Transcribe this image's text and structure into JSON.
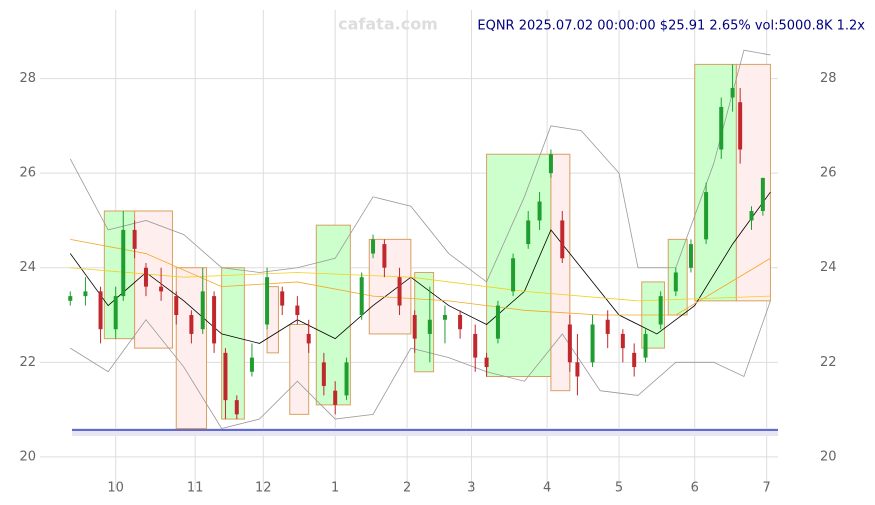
{
  "chart_data": {
    "type": "candlestick",
    "title": "EQNR 2025.07.02 00:00:00 $25.91 2.65% vol:5000.8K 1.2x",
    "watermark": "cafata.com",
    "x": [
      0,
      4,
      8,
      12,
      14,
      17,
      20,
      24,
      28,
      32,
      35,
      38,
      41,
      44,
      48,
      52,
      56,
      60,
      63,
      67,
      70,
      73,
      77,
      80,
      83,
      87,
      91,
      95,
      99,
      103,
      107,
      110,
      113,
      117,
      121,
      124,
      127,
      130,
      132,
      134,
      138,
      142,
      146,
      149,
      152,
      156,
      160,
      164,
      168,
      172,
      175,
      177,
      180,
      183
    ],
    "open": [
      23.3,
      23.4,
      23.5,
      22.7,
      23.4,
      24.8,
      24.0,
      23.6,
      23.4,
      23.0,
      22.7,
      23.4,
      22.2,
      21.2,
      21.8,
      22.8,
      23.5,
      23.2,
      22.6,
      22.0,
      21.4,
      21.3,
      23.0,
      24.3,
      24.5,
      23.8,
      23.0,
      22.6,
      22.9,
      23.0,
      22.6,
      22.1,
      22.5,
      23.5,
      24.5,
      25.0,
      26.0,
      25.0,
      22.8,
      22.0,
      22.0,
      22.9,
      22.6,
      22.2,
      22.1,
      22.8,
      23.5,
      24.0,
      24.6,
      26.5,
      27.6,
      27.5,
      25.0,
      25.2
    ],
    "high": [
      23.5,
      23.8,
      23.6,
      23.6,
      25.2,
      25.0,
      24.1,
      24.0,
      23.5,
      23.1,
      24.0,
      23.5,
      22.3,
      21.3,
      22.4,
      24.0,
      23.6,
      23.4,
      22.9,
      22.2,
      21.6,
      22.1,
      23.9,
      24.7,
      24.6,
      24.0,
      23.1,
      23.6,
      23.2,
      23.1,
      22.8,
      22.2,
      23.3,
      24.3,
      25.2,
      25.6,
      26.5,
      25.2,
      23.0,
      22.6,
      23.0,
      23.1,
      22.7,
      22.4,
      22.7,
      23.5,
      24.0,
      24.6,
      25.8,
      27.6,
      28.3,
      27.8,
      25.3,
      25.9
    ],
    "low": [
      23.2,
      23.2,
      22.4,
      22.5,
      23.3,
      24.2,
      23.4,
      23.3,
      22.8,
      22.4,
      22.6,
      22.2,
      20.8,
      20.8,
      21.7,
      22.7,
      23.0,
      22.8,
      22.2,
      21.3,
      20.9,
      21.2,
      22.9,
      24.2,
      23.8,
      23.0,
      22.2,
      22.0,
      22.4,
      22.5,
      21.8,
      21.7,
      22.4,
      23.4,
      24.4,
      24.8,
      25.9,
      24.1,
      21.8,
      21.3,
      21.9,
      22.3,
      22.0,
      21.7,
      22.0,
      22.7,
      23.4,
      23.9,
      24.5,
      26.3,
      27.3,
      26.2,
      24.8,
      25.1
    ],
    "close": [
      23.4,
      23.5,
      22.7,
      23.4,
      24.8,
      24.4,
      23.6,
      23.5,
      23.0,
      22.6,
      23.5,
      22.4,
      21.2,
      20.9,
      22.1,
      23.8,
      23.2,
      23.0,
      22.4,
      21.5,
      21.1,
      22.0,
      23.8,
      24.6,
      24.0,
      23.2,
      22.5,
      22.9,
      23.0,
      22.7,
      22.1,
      21.9,
      23.2,
      24.2,
      25.0,
      25.4,
      26.4,
      24.2,
      22.0,
      21.7,
      22.8,
      22.6,
      22.3,
      21.9,
      22.6,
      23.4,
      23.9,
      24.5,
      25.6,
      27.4,
      27.8,
      26.5,
      25.2,
      25.9
    ],
    "up_color": "#1f9e2f",
    "down_color": "#c0282d",
    "xlim": [
      -8,
      187
    ],
    "xticks": [
      {
        "value": 12,
        "label": "10"
      },
      {
        "value": 33,
        "label": "11"
      },
      {
        "value": 51,
        "label": "12"
      },
      {
        "value": 70,
        "label": "1"
      },
      {
        "value": 89,
        "label": "2"
      },
      {
        "value": 106,
        "label": "3"
      },
      {
        "value": 126,
        "label": "4"
      },
      {
        "value": 145,
        "label": "5"
      },
      {
        "value": 165,
        "label": "6"
      },
      {
        "value": 184,
        "label": "7"
      }
    ],
    "ylim": [
      19.3,
      29.45
    ],
    "yticks": [
      20,
      22,
      24,
      26,
      28
    ],
    "grid": true,
    "lines": [
      {
        "color": "#000000",
        "x": [
          0,
          10,
          20,
          30,
          40,
          50,
          60,
          70,
          80,
          90,
          100,
          110,
          120,
          127,
          135,
          145,
          155,
          165,
          175,
          185
        ],
        "values": [
          24.3,
          23.2,
          23.9,
          23.3,
          22.6,
          22.4,
          22.9,
          22.5,
          23.2,
          23.8,
          23.2,
          22.8,
          23.5,
          24.8,
          24.0,
          23.0,
          22.6,
          23.2,
          24.5,
          25.6
        ]
      },
      {
        "color": "#f5a623",
        "x": [
          0,
          20,
          40,
          60,
          80,
          100,
          120,
          140,
          160,
          185
        ],
        "values": [
          24.6,
          24.3,
          23.6,
          23.7,
          23.4,
          23.3,
          23.1,
          23.0,
          23.0,
          24.2
        ]
      },
      {
        "color": "#f2d01e",
        "x": [
          0,
          30,
          60,
          90,
          120,
          150,
          185
        ],
        "values": [
          24.0,
          23.8,
          23.9,
          23.8,
          23.5,
          23.3,
          23.4
        ]
      },
      {
        "color": "#999999",
        "x": [
          0,
          10,
          20,
          30,
          40,
          50,
          60,
          70,
          80,
          90,
          100,
          110,
          120,
          127,
          135,
          145,
          150,
          160,
          170,
          178,
          185
        ],
        "values": [
          26.3,
          24.8,
          25.0,
          24.7,
          24.0,
          23.9,
          24.0,
          24.2,
          25.5,
          25.3,
          24.3,
          23.7,
          25.5,
          27.0,
          26.9,
          26.0,
          24.0,
          24.0,
          26.2,
          28.6,
          28.5
        ]
      },
      {
        "color": "#999999",
        "x": [
          0,
          10,
          20,
          30,
          40,
          50,
          60,
          70,
          80,
          90,
          100,
          110,
          120,
          130,
          140,
          150,
          160,
          170,
          178,
          185
        ],
        "values": [
          22.3,
          21.8,
          22.9,
          21.9,
          20.6,
          20.8,
          21.6,
          20.8,
          20.9,
          22.3,
          22.1,
          21.8,
          21.6,
          22.6,
          21.4,
          21.3,
          22.0,
          22.0,
          21.7,
          23.3
        ]
      }
    ],
    "zones": [
      {
        "x": [
          9,
          17
        ],
        "range": [
          22.5,
          25.2
        ],
        "color": "#ccffcc"
      },
      {
        "x": [
          17,
          27
        ],
        "range": [
          22.3,
          25.2
        ],
        "color": "#ffeeee"
      },
      {
        "x": [
          28,
          36
        ],
        "range": [
          20.6,
          24.0
        ],
        "color": "#ffeeee"
      },
      {
        "x": [
          40,
          46
        ],
        "range": [
          20.8,
          24.0
        ],
        "color": "#ccffcc"
      },
      {
        "x": [
          52,
          55
        ],
        "range": [
          22.2,
          23.6
        ],
        "color": "#ffeeee"
      },
      {
        "x": [
          58,
          63
        ],
        "range": [
          20.9,
          22.8
        ],
        "color": "#ffeeee"
      },
      {
        "x": [
          65,
          74
        ],
        "range": [
          21.1,
          24.9
        ],
        "color": "#ccffcc"
      },
      {
        "x": [
          79,
          90
        ],
        "range": [
          22.6,
          24.6
        ],
        "color": "#ffeeee"
      },
      {
        "x": [
          91,
          96
        ],
        "range": [
          21.8,
          23.9
        ],
        "color": "#ccffcc"
      },
      {
        "x": [
          110,
          127
        ],
        "range": [
          21.7,
          26.4
        ],
        "color": "#ccffcc"
      },
      {
        "x": [
          127,
          132
        ],
        "range": [
          21.4,
          26.4
        ],
        "color": "#ffeeee"
      },
      {
        "x": [
          151,
          157
        ],
        "range": [
          22.3,
          23.7
        ],
        "color": "#ccffcc"
      },
      {
        "x": [
          158,
          163
        ],
        "range": [
          23.0,
          24.6
        ],
        "color": "#ccffcc"
      },
      {
        "x": [
          165,
          176
        ],
        "range": [
          23.3,
          28.3
        ],
        "color": "#ccffcc"
      },
      {
        "x": [
          176,
          185
        ],
        "range": [
          23.3,
          28.3
        ],
        "color": "#ffeeee"
      }
    ]
  }
}
